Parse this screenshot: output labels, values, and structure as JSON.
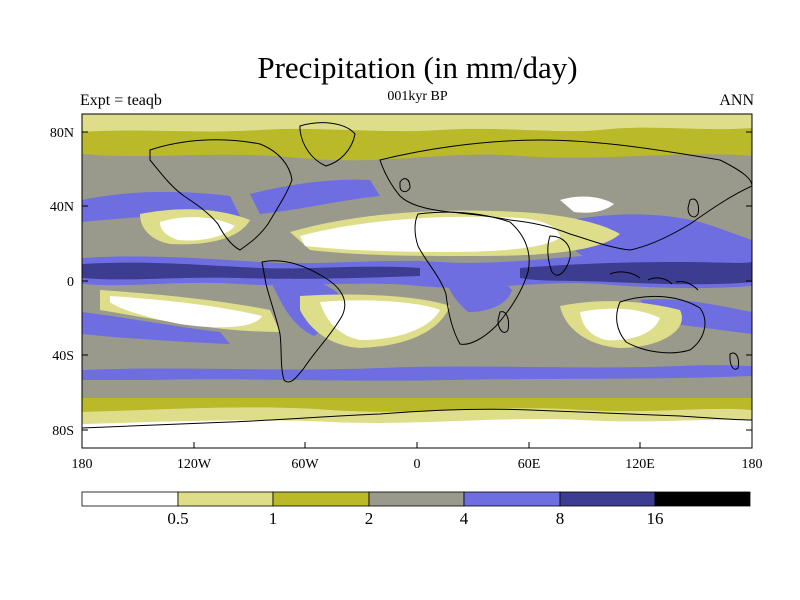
{
  "title": "Precipitation (in mm/day)",
  "experiment_label": "Expt = teaqb",
  "period_label": "001kyr BP",
  "season_label": "ANN",
  "lat_ticks": [
    "80N",
    "40N",
    "0",
    "40S",
    "80S"
  ],
  "lon_ticks": [
    "180",
    "120W",
    "60W",
    "0",
    "60E",
    "120E",
    "180"
  ],
  "colorbar": {
    "levels": [
      "0.5",
      "1",
      "2",
      "4",
      "8",
      "16"
    ],
    "colors": [
      "#ffffff",
      "#dede8a",
      "#b9b92a",
      "#9a9a8c",
      "#6e6ee0",
      "#3c3c90",
      "#000000"
    ]
  }
}
